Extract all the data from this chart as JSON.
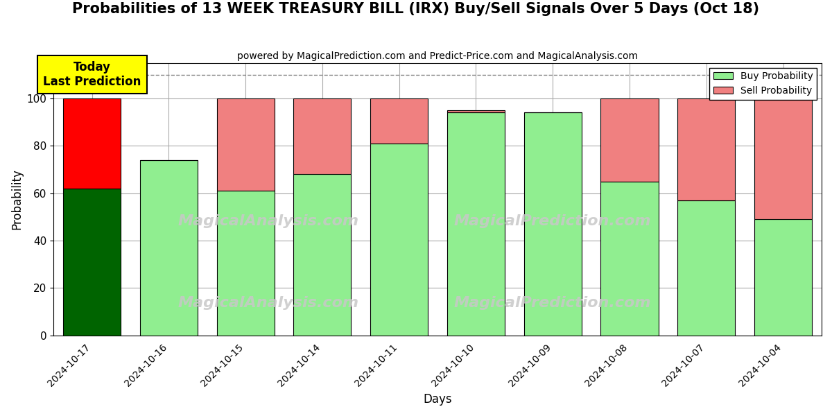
{
  "title": "Probabilities of 13 WEEK TREASURY BILL (IRX) Buy/Sell Signals Over 5 Days (Oct 18)",
  "subtitle": "powered by MagicalPrediction.com and Predict-Price.com and MagicalAnalysis.com",
  "xlabel": "Days",
  "ylabel": "Probability",
  "categories": [
    "2024-10-17",
    "2024-10-16",
    "2024-10-15",
    "2024-10-14",
    "2024-10-11",
    "2024-10-10",
    "2024-10-09",
    "2024-10-08",
    "2024-10-07",
    "2024-10-04"
  ],
  "buy_values": [
    62,
    74,
    61,
    68,
    81,
    94,
    94,
    65,
    57,
    49
  ],
  "sell_values": [
    38,
    0,
    39,
    32,
    19,
    1,
    0,
    35,
    43,
    51
  ],
  "buy_colors": [
    "#006400",
    "#90EE90",
    "#90EE90",
    "#90EE90",
    "#90EE90",
    "#90EE90",
    "#90EE90",
    "#90EE90",
    "#90EE90",
    "#90EE90"
  ],
  "sell_colors": [
    "#FF0000",
    "#F08080",
    "#F08080",
    "#F08080",
    "#F08080",
    "#F08080",
    "#F08080",
    "#F08080",
    "#F08080",
    "#F08080"
  ],
  "buy_legend_color": "#90EE90",
  "sell_legend_color": "#F08080",
  "today_box_color": "#FFFF00",
  "today_label": "Today\nLast Prediction",
  "dashed_line_y": 110,
  "ylim": [
    0,
    115
  ],
  "yticks": [
    0,
    20,
    40,
    60,
    80,
    100
  ],
  "bar_edge_color": "#000000",
  "bar_linewidth": 0.8,
  "plot_bg_color": "#F5F5DC",
  "fig_bg_color": "#FFFFFF",
  "grid_color": "#AAAAAA",
  "title_fontsize": 15,
  "subtitle_fontsize": 10,
  "label_fontsize": 12
}
